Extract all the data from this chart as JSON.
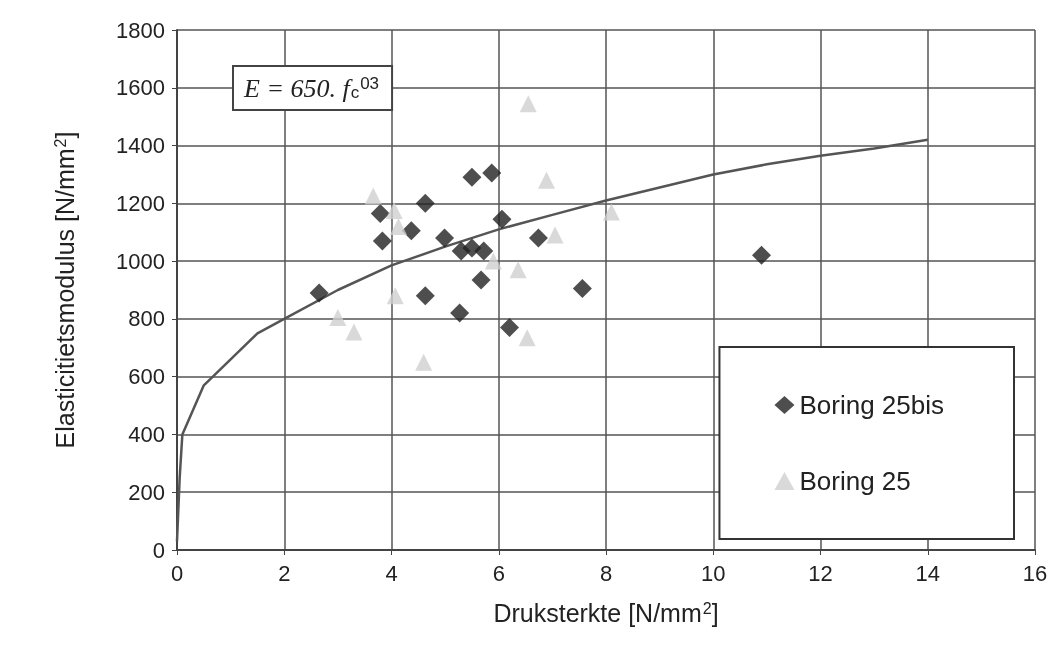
{
  "chart_data": {
    "type": "scatter",
    "xlabel": "Druksterkte [N/mm$^{2}$]",
    "ylabel": "Elasticitietsmodulus [N/mm$^{2}$]",
    "annotations": [
      "E = 650. f$_{c}$$^{03}$"
    ],
    "series": [
      {
        "name": "Boring 25bis",
        "color": "#222222",
        "marker": "diamond",
        "x": [
          2.65,
          3.79,
          3.83,
          4.37,
          4.63,
          4.63,
          4.99,
          5.27,
          5.3,
          5.5,
          5.72,
          5.5,
          5.87,
          5.67,
          6.06,
          6.2,
          6.74,
          7.56,
          10.9
        ],
        "values": [
          890,
          1165,
          1070,
          1105,
          1200,
          880,
          1080,
          820,
          1035,
          1045,
          1035,
          1290,
          1305,
          935,
          1145,
          770,
          1080,
          905,
          1020
        ]
      },
      {
        "name": "Boring 25",
        "color": "#cfcfcf",
        "marker": "triangle",
        "x": [
          3.66,
          4.05,
          4.13,
          4.07,
          3.0,
          3.3,
          4.6,
          6.55,
          6.89,
          8.1,
          7.05,
          5.9,
          6.36,
          6.53
        ],
        "values": [
          1225,
          1175,
          1120,
          880,
          805,
          755,
          650,
          1545,
          1280,
          1170,
          1090,
          1000,
          970,
          735
        ]
      },
      {
        "type": "line",
        "color": "#555555",
        "marker": "none",
        "x": [
          0,
          0.05,
          0.1,
          0.5,
          1,
          1.5,
          2,
          3,
          4,
          5,
          6,
          7,
          8,
          9,
          10,
          11,
          12,
          13,
          14
        ],
        "values": [
          30,
          250,
          400,
          570,
          660,
          750,
          800,
          900,
          985,
          1050,
          1110,
          1160,
          1210,
          1255,
          1300,
          1335,
          1365,
          1390,
          1420
        ]
      }
    ],
    "xlim": [
      0,
      16
    ],
    "xticks": [
      0,
      2,
      4,
      6,
      8,
      10,
      12,
      14,
      16
    ],
    "ylim": [
      0,
      1800
    ],
    "yticks": [
      0,
      200,
      400,
      600,
      800,
      1000,
      1200,
      1400,
      1600,
      1800
    ],
    "grid": true,
    "legend": "bottom right"
  }
}
